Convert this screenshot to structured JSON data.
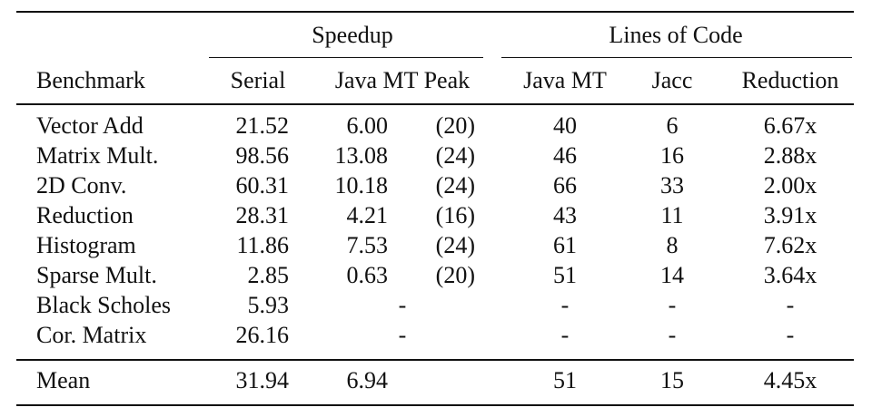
{
  "table": {
    "group_headers": {
      "speedup": "Speedup",
      "loc": "Lines of Code"
    },
    "columns": {
      "benchmark": "Benchmark",
      "serial": "Serial",
      "java_mt_peak": "Java MT Peak",
      "loc_java_mt": "Java MT",
      "jacc": "Jacc",
      "reduction": "Reduction"
    },
    "rows": [
      {
        "benchmark": "Vector Add",
        "serial": "21.52",
        "java_mt": "6.00",
        "peak": "(20)",
        "loc_java_mt": "40",
        "jacc": "6",
        "reduction": "6.67x"
      },
      {
        "benchmark": "Matrix Mult.",
        "serial": "98.56",
        "java_mt": "13.08",
        "peak": "(24)",
        "loc_java_mt": "46",
        "jacc": "16",
        "reduction": "2.88x"
      },
      {
        "benchmark": "2D Conv.",
        "serial": "60.31",
        "java_mt": "10.18",
        "peak": "(24)",
        "loc_java_mt": "66",
        "jacc": "33",
        "reduction": "2.00x"
      },
      {
        "benchmark": "Reduction",
        "serial": "28.31",
        "java_mt": "4.21",
        "peak": "(16)",
        "loc_java_mt": "43",
        "jacc": "11",
        "reduction": "3.91x"
      },
      {
        "benchmark": "Histogram",
        "serial": "11.86",
        "java_mt": "7.53",
        "peak": "(24)",
        "loc_java_mt": "61",
        "jacc": "8",
        "reduction": "7.62x"
      },
      {
        "benchmark": "Sparse Mult.",
        "serial": "2.85",
        "java_mt": "0.63",
        "peak": "(20)",
        "loc_java_mt": "51",
        "jacc": "14",
        "reduction": "3.64x"
      },
      {
        "benchmark": "Black Scholes",
        "serial": "5.93",
        "java_mt": "-",
        "peak": "",
        "loc_java_mt": "-",
        "jacc": "-",
        "reduction": "-"
      },
      {
        "benchmark": "Cor. Matrix",
        "serial": "26.16",
        "java_mt": "-",
        "peak": "",
        "loc_java_mt": "-",
        "jacc": "-",
        "reduction": "-"
      }
    ],
    "mean": {
      "benchmark": "Mean",
      "serial": "31.94",
      "java_mt": "6.94",
      "peak": "",
      "loc_java_mt": "51",
      "jacc": "15",
      "reduction": "4.45x"
    }
  }
}
